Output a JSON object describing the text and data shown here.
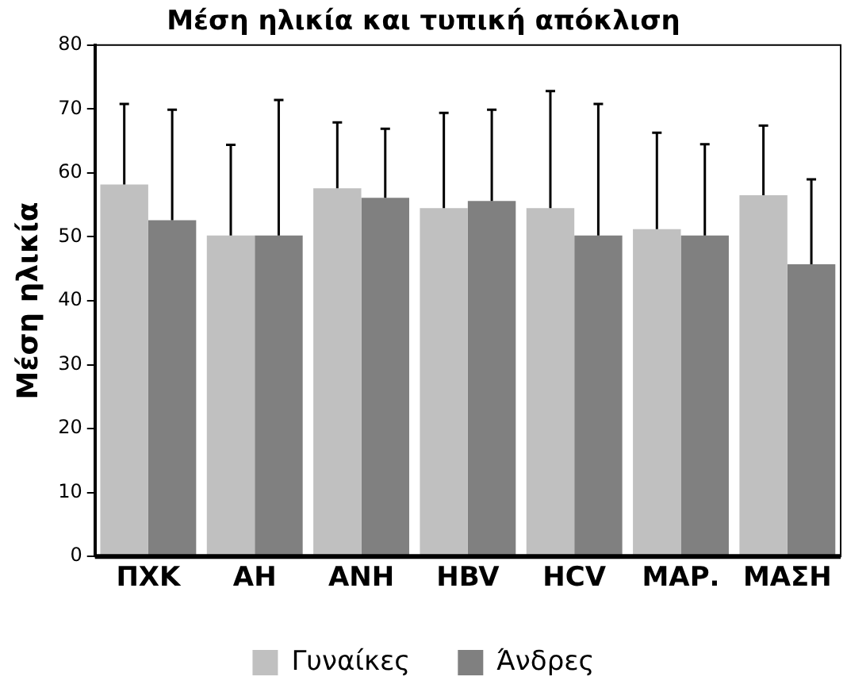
{
  "chart_data": {
    "type": "bar",
    "title": "Μέση ηλικία και τυπική απόκλιση",
    "ylabel": "Μέση ηλικία",
    "categories": [
      "ΠΧΚ",
      "ΑΗ",
      "ΑΝΗ",
      "HBV",
      "HCV",
      "ΜΑΡ.",
      "ΜΑΣΗ"
    ],
    "series": [
      {
        "name": "Γυναίκες",
        "color": "#c0c0c0",
        "values": [
          58.2,
          50.2,
          57.6,
          54.5,
          54.5,
          51.2,
          56.5
        ],
        "errors": [
          [
            58.2,
            70.8
          ],
          [
            50.2,
            64.4
          ],
          [
            57.6,
            67.9
          ],
          [
            54.5,
            69.4
          ],
          [
            54.5,
            72.8
          ],
          [
            51.2,
            66.3
          ],
          [
            56.5,
            67.4
          ]
        ]
      },
      {
        "name": "Άνδρες",
        "color": "#808080",
        "values": [
          52.6,
          50.2,
          56.1,
          55.6,
          50.2,
          50.2,
          45.7
        ],
        "errors": [
          [
            52.6,
            69.9
          ],
          [
            50.2,
            71.4
          ],
          [
            56.1,
            66.9
          ],
          [
            55.6,
            69.9
          ],
          [
            50.2,
            70.8
          ],
          [
            50.2,
            64.5
          ],
          [
            45.7,
            59.0
          ]
        ]
      }
    ],
    "ylim": [
      0,
      80
    ],
    "yticks": [
      0,
      10,
      20,
      30,
      40,
      50,
      60,
      70,
      80
    ],
    "grid": false,
    "legend": "bottom"
  }
}
